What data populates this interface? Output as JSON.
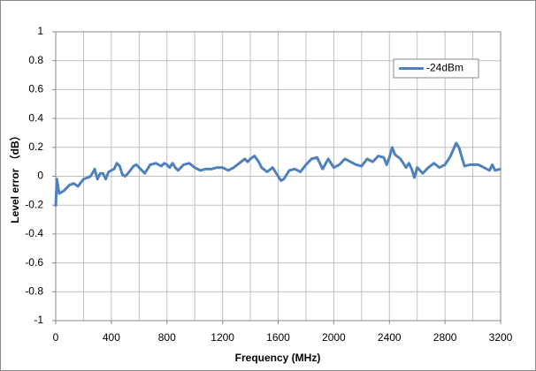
{
  "chart_data": {
    "type": "line",
    "xlabel": "Frequency (MHz)",
    "ylabel": "Level error （dB）",
    "xlim": [
      0,
      3200
    ],
    "xticks": [
      0,
      400,
      800,
      1200,
      1600,
      2000,
      2400,
      2800,
      3200
    ],
    "xminorticks": [
      200,
      600,
      1000,
      1400,
      1800,
      2200,
      2600,
      3000
    ],
    "ylim": [
      -1,
      1
    ],
    "yticks": [
      -1,
      -0.8,
      -0.6,
      -0.4,
      -0.2,
      0,
      0.2,
      0.4,
      0.6,
      0.8,
      1
    ],
    "grid": true,
    "legend": "upper right",
    "x": [
      0,
      8,
      25,
      60,
      100,
      130,
      160,
      200,
      230,
      250,
      270,
      280,
      300,
      320,
      340,
      360,
      380,
      420,
      440,
      460,
      480,
      500,
      520,
      560,
      580,
      600,
      640,
      680,
      720,
      760,
      780,
      800,
      820,
      840,
      860,
      880,
      920,
      960,
      1000,
      1040,
      1080,
      1120,
      1160,
      1200,
      1220,
      1240,
      1280,
      1320,
      1360,
      1380,
      1400,
      1430,
      1460,
      1480,
      1520,
      1560,
      1600,
      1620,
      1640,
      1680,
      1720,
      1760,
      1800,
      1840,
      1880,
      1920,
      1960,
      2000,
      2040,
      2080,
      2120,
      2160,
      2200,
      2240,
      2280,
      2320,
      2360,
      2380,
      2400,
      2420,
      2440,
      2480,
      2520,
      2540,
      2560,
      2580,
      2600,
      2640,
      2680,
      2720,
      2760,
      2800,
      2840,
      2880,
      2900,
      2940,
      2980,
      3040,
      3080,
      3120,
      3140,
      3160,
      3200
    ],
    "series": [
      {
        "name": "-24dBm",
        "color": "#4f81bd",
        "values": [
          -0.21,
          -0.02,
          -0.12,
          -0.1,
          -0.06,
          -0.05,
          -0.07,
          -0.02,
          -0.01,
          0,
          0.03,
          0.05,
          -0.02,
          0.02,
          0.02,
          -0.02,
          0.03,
          0.05,
          0.09,
          0.07,
          0.01,
          0,
          0.02,
          0.07,
          0.08,
          0.06,
          0.02,
          0.08,
          0.09,
          0.07,
          0.09,
          0.08,
          0.06,
          0.09,
          0.06,
          0.04,
          0.08,
          0.09,
          0.06,
          0.04,
          0.05,
          0.05,
          0.06,
          0.06,
          0.05,
          0.04,
          0.06,
          0.09,
          0.12,
          0.1,
          0.12,
          0.14,
          0.1,
          0.06,
          0.03,
          0.06,
          0,
          -0.03,
          -0.02,
          0.04,
          0.05,
          0.03,
          0.08,
          0.12,
          0.13,
          0.05,
          0.12,
          0.06,
          0.08,
          0.12,
          0.1,
          0.08,
          0.07,
          0.12,
          0.1,
          0.14,
          0.13,
          0.08,
          0.13,
          0.2,
          0.15,
          0.12,
          0.06,
          0.09,
          0.05,
          -0.01,
          0.06,
          0.02,
          0.06,
          0.09,
          0.06,
          0.08,
          0.14,
          0.23,
          0.2,
          0.07,
          0.08,
          0.08,
          0.06,
          0.04,
          0.08,
          0.04,
          0.05
        ]
      }
    ]
  }
}
